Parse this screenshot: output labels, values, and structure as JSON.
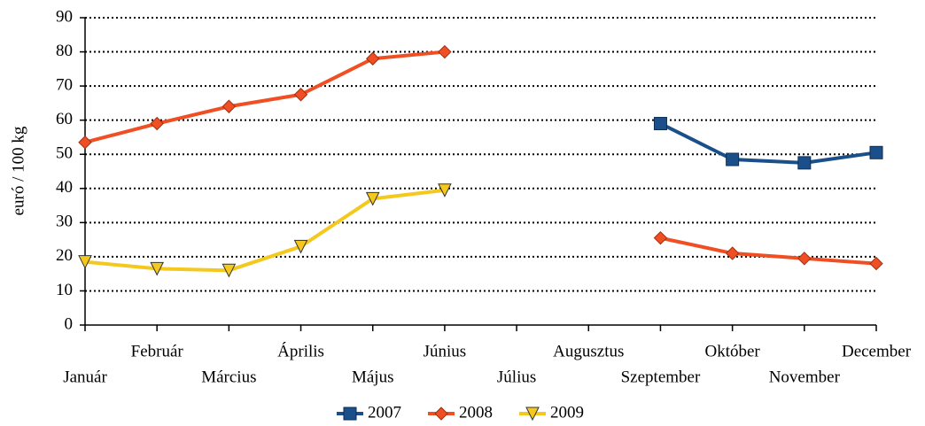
{
  "chart_data": {
    "type": "line",
    "ylabel": "euró / 100 kg",
    "categories": [
      "Január",
      "Február",
      "Március",
      "Április",
      "Május",
      "Június",
      "Július",
      "Augusztus",
      "Szeptember",
      "Október",
      "November",
      "December"
    ],
    "series": [
      {
        "name": "2007",
        "color": "#1b4f8a",
        "marker": "square",
        "values": [
          null,
          null,
          null,
          null,
          null,
          null,
          null,
          null,
          59,
          48.5,
          47.5,
          50.5
        ]
      },
      {
        "name": "2008",
        "color": "#f04e23",
        "marker": "diamond",
        "values": [
          53.5,
          59,
          64,
          67.5,
          78,
          80,
          null,
          null,
          25.5,
          21,
          19.5,
          18
        ]
      },
      {
        "name": "2009",
        "color": "#f5c81e",
        "marker": "triangle-down",
        "values": [
          18.5,
          16.5,
          16,
          23,
          37,
          39.5,
          null,
          null,
          null,
          null,
          null,
          null
        ]
      }
    ],
    "ylim": [
      0,
      90
    ],
    "yticks": [
      0,
      10,
      20,
      30,
      40,
      50,
      60,
      70,
      80,
      90
    ],
    "grid": true,
    "legend": "bottom"
  }
}
